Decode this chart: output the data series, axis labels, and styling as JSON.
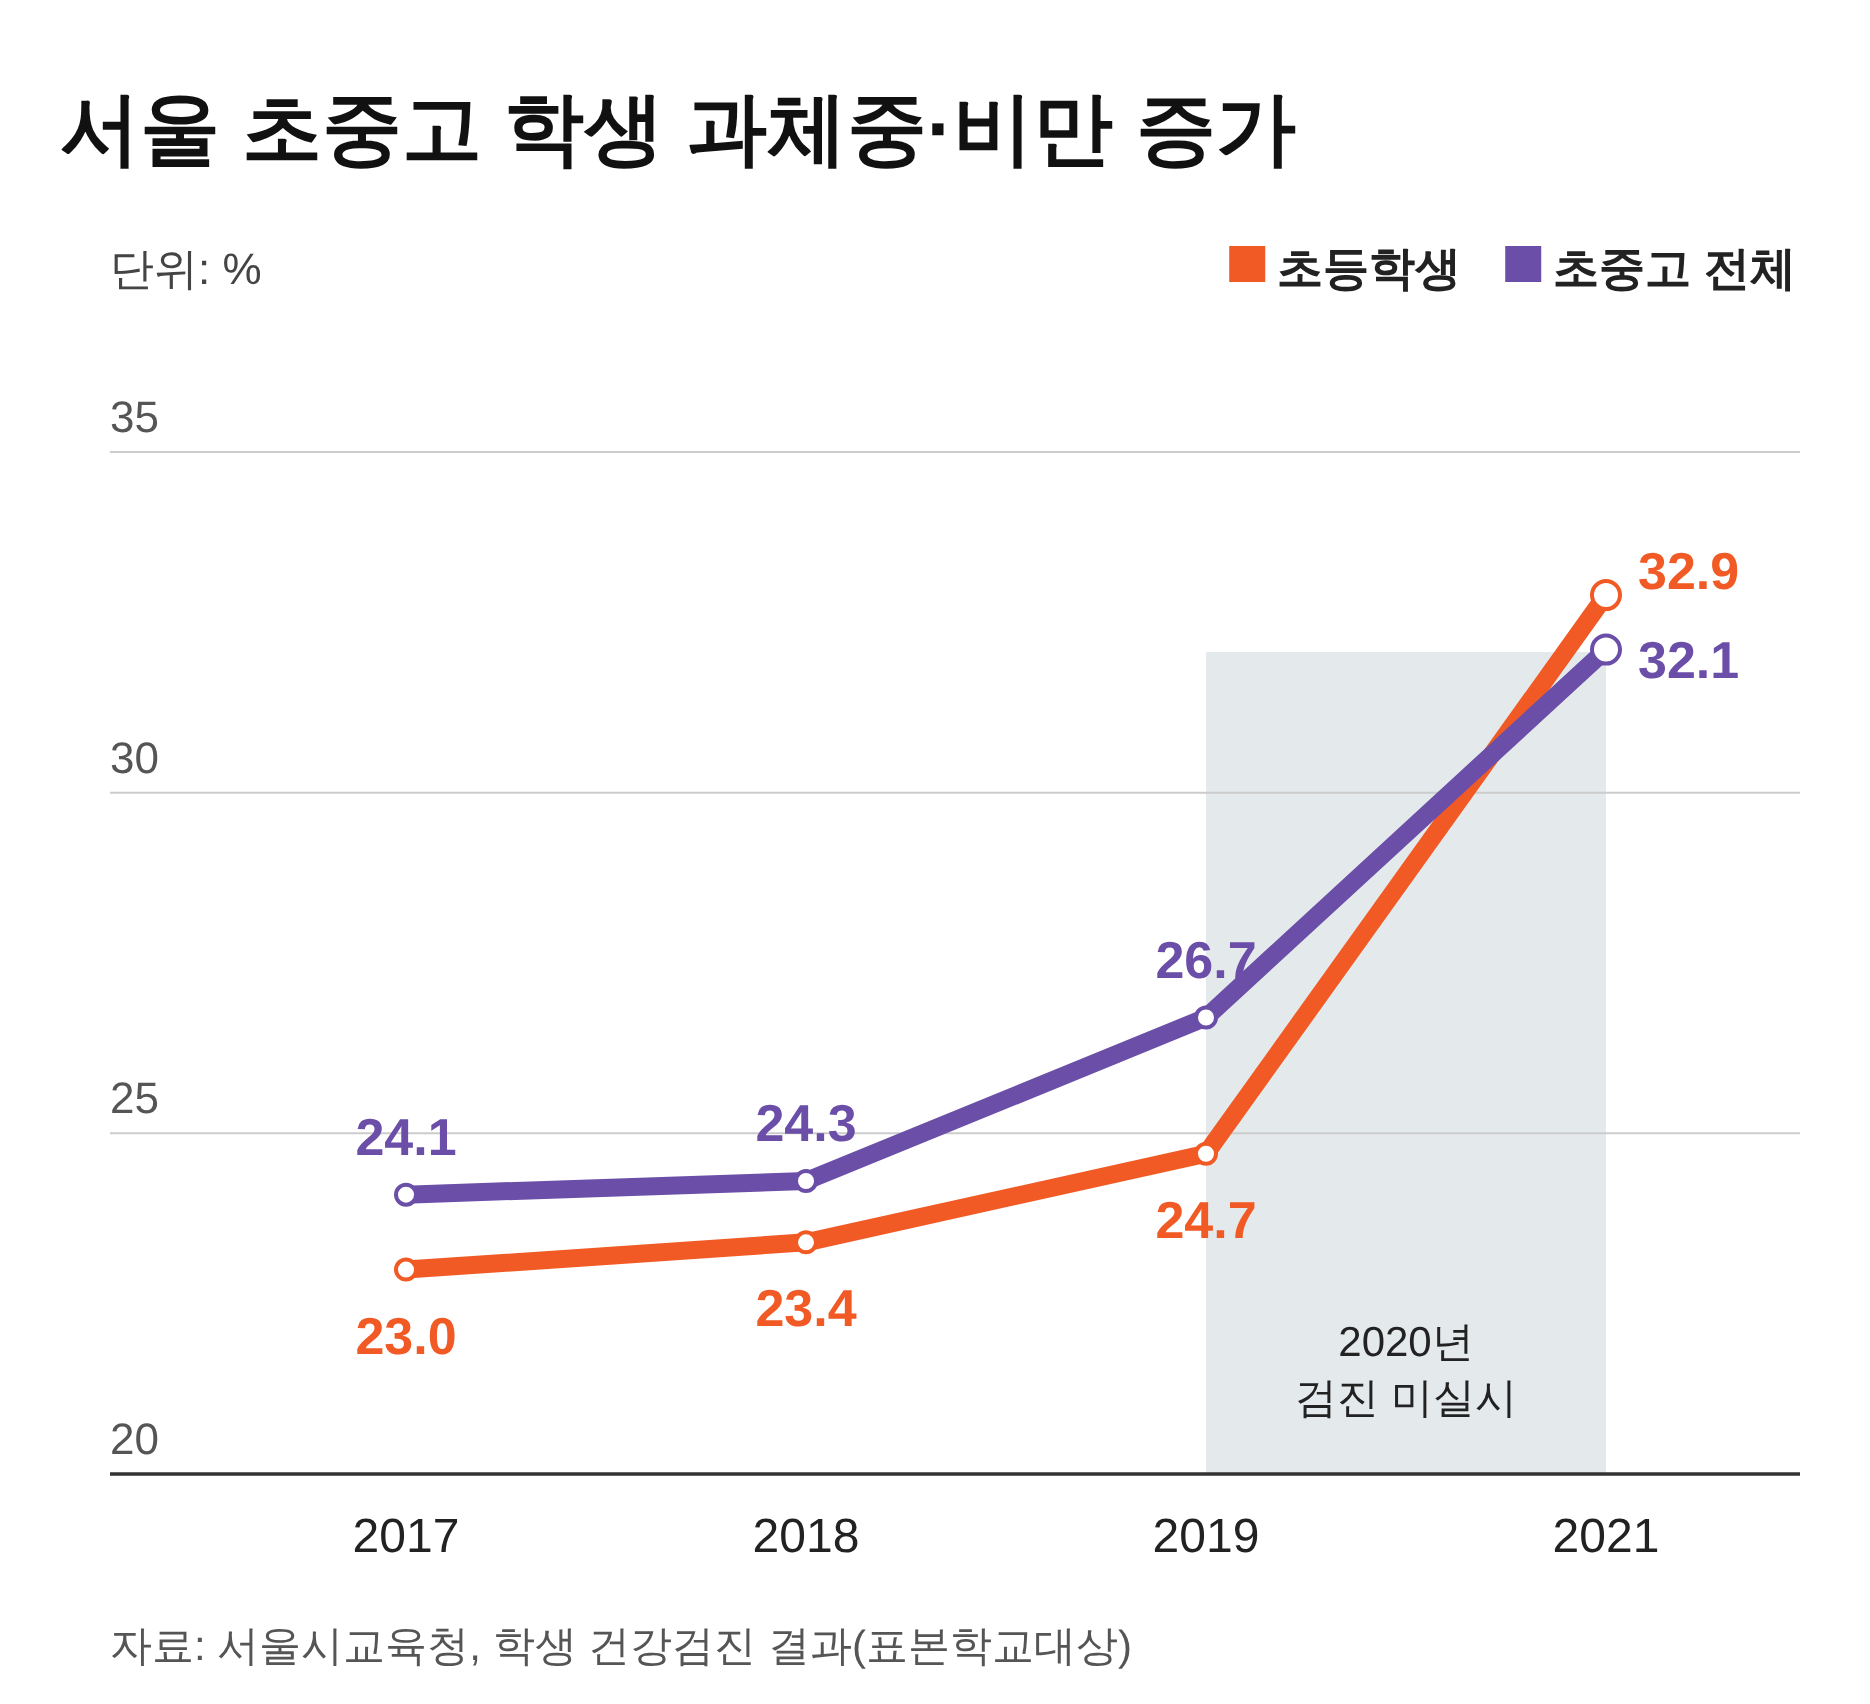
{
  "chart_data": {
    "type": "line",
    "title": "서울 초중고 학생 과체중·비만 증가",
    "ylabel": "단위: %",
    "categories": [
      "2017",
      "2018",
      "2019",
      "2021"
    ],
    "series": [
      {
        "name": "초등학생",
        "color": "#f15a24",
        "values": [
          23.0,
          23.4,
          24.7,
          32.9
        ],
        "value_labels": [
          "23.0",
          "23.4",
          "24.7",
          "32.9"
        ]
      },
      {
        "name": "초중고 전체",
        "color": "#6a4ea8",
        "values": [
          24.1,
          24.3,
          26.7,
          32.1
        ],
        "value_labels": [
          "24.1",
          "24.3",
          "26.7",
          "32.1"
        ]
      }
    ],
    "ylim": [
      20,
      35
    ],
    "yticks": [
      20,
      25,
      30,
      35
    ],
    "grid": "y",
    "legend": "top right",
    "marker": "circle",
    "line_style": "solid",
    "bands": [
      {
        "axis": "x",
        "from": "2019",
        "to": "2021",
        "label": "2020년 검진 미실시",
        "color": "#e4eaec"
      }
    ],
    "annotations": [
      "자료: 서울시교육청, 학생 건강검진 결과(표본학교대상)"
    ]
  }
}
